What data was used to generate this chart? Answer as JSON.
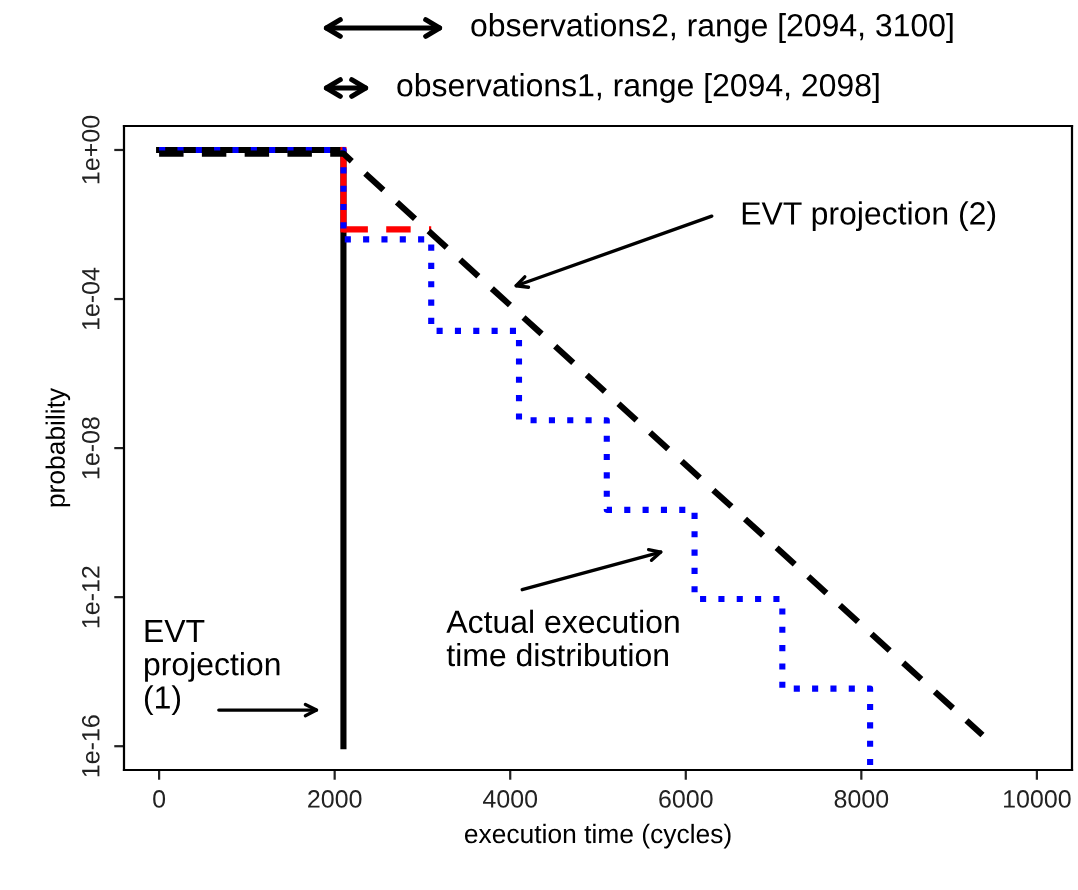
{
  "chart_data": {
    "type": "line",
    "xlabel": "execution time (cycles)",
    "ylabel": "probability",
    "log": "y",
    "xlim": [
      -400,
      10400
    ],
    "ylim": [
      2.3e-17,
      4.4
    ],
    "xticks": [
      0,
      2000,
      4000,
      6000,
      8000,
      10000
    ],
    "yticks": [
      {
        "value": 1,
        "label": "1e+00"
      },
      {
        "value": 0.0001,
        "label": "1e-04"
      },
      {
        "value": 1e-08,
        "label": "1e-08"
      },
      {
        "value": 1e-12,
        "label": "1e-12"
      },
      {
        "value": 1e-16,
        "label": "1e-16"
      }
    ],
    "grid": false,
    "legend": false,
    "series": [
      {
        "color": "#000000",
        "line_style": "solid",
        "x": [
          0,
          2100,
          2100
        ],
        "values": [
          1,
          1,
          1e-16
        ]
      },
      {
        "color": "#ff0000",
        "line_style": "solid",
        "x": [
          2100,
          2100
        ],
        "values": [
          1,
          0.0074
        ]
      },
      {
        "color": "#ff0000",
        "line_style": "dashed",
        "x": [
          2100,
          3100
        ],
        "values": [
          0.0074,
          0.0074
        ]
      },
      {
        "type": "step",
        "color": "#0000ff",
        "line_style": "dotted",
        "x": [
          0,
          2100,
          3100,
          4100,
          5100,
          6100,
          7100,
          8100
        ],
        "values": [
          1,
          0.004,
          1.4e-05,
          5.6e-08,
          2.2e-10,
          8.9e-13,
          3.5e-15,
          3e-17
        ]
      },
      {
        "color": "#000000",
        "line_style": "dashed",
        "x": [
          0,
          2100,
          9380
        ],
        "values": [
          0.8,
          0.8,
          2e-16
        ]
      }
    ],
    "annotations": [
      "observations2, range [2094, 3100]",
      "observations1, range [2094, 2098]",
      "EVT projection (2)",
      "Actual execution\ntime distribution",
      "EVT\nprojection\n(1)"
    ]
  }
}
